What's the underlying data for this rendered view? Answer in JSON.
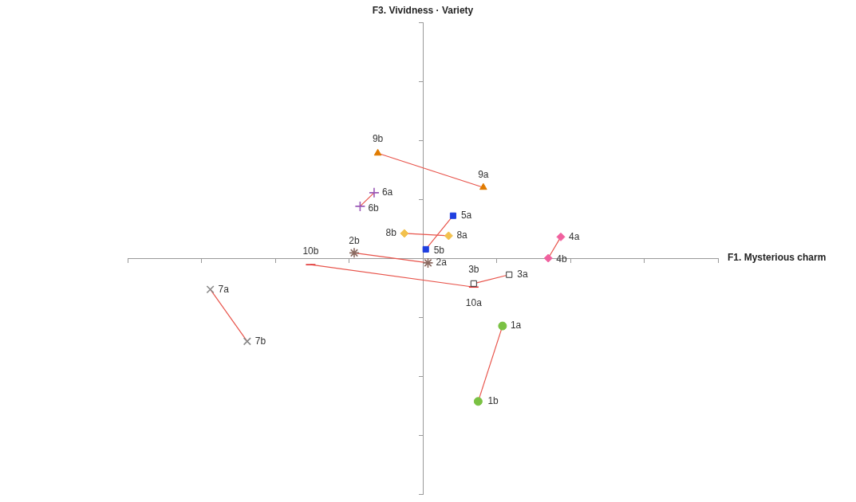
{
  "chart_data": {
    "type": "scatter",
    "x_label": "F1. Mysterious charm",
    "y_label": "F3. Vividness · Variety",
    "xlim": [
      -4,
      4
    ],
    "xticks": [
      -4,
      -3,
      -2,
      -1,
      0,
      1,
      2,
      3,
      4
    ],
    "ylim": [
      -4,
      4
    ],
    "yticks": [
      -4,
      -3,
      -2,
      -1,
      0,
      1,
      2,
      3,
      4
    ],
    "tick_labels": false,
    "grid": false,
    "series": [
      {
        "color": "#7ac143",
        "marker": "circle",
        "line_style": "solid",
        "labels": [
          "1a",
          "1b"
        ],
        "x": [
          1.08,
          0.75
        ],
        "values": [
          -1.15,
          -2.43
        ]
      },
      {
        "color": "#8b6b61",
        "marker": "star",
        "line_style": "solid",
        "labels": [
          "2a",
          "2b"
        ],
        "x": [
          0.07,
          -0.93
        ],
        "values": [
          -0.08,
          0.09
        ]
      },
      {
        "color": "#333333",
        "marker": "open_square",
        "line_style": "solid",
        "labels": [
          "3a",
          "3b"
        ],
        "x": [
          1.17,
          0.69
        ],
        "values": [
          -0.28,
          -0.43
        ]
      },
      {
        "color": "#f0609e",
        "marker": "diamond",
        "line_style": "solid",
        "labels": [
          "4a",
          "4b"
        ],
        "x": [
          1.87,
          1.7
        ],
        "values": [
          0.36,
          0.0
        ]
      },
      {
        "color": "#1f3fe0",
        "marker": "square",
        "line_style": "solid",
        "labels": [
          "5a",
          "5b"
        ],
        "x": [
          0.41,
          0.04
        ],
        "values": [
          0.72,
          0.15
        ]
      },
      {
        "color": "#9b59b6",
        "marker": "plus",
        "line_style": "solid",
        "labels": [
          "6a",
          "6b"
        ],
        "x": [
          -0.66,
          -0.85
        ],
        "values": [
          1.11,
          0.88
        ]
      },
      {
        "color": "#888888",
        "marker": "x",
        "line_style": "solid",
        "labels": [
          "7a",
          "7b"
        ],
        "x": [
          -2.88,
          -2.38
        ],
        "values": [
          -0.53,
          -1.41
        ]
      },
      {
        "color": "#f2c14e",
        "marker": "diamond",
        "line_style": "solid",
        "labels": [
          "8a",
          "8b"
        ],
        "x": [
          0.35,
          -0.25
        ],
        "values": [
          0.38,
          0.42
        ]
      },
      {
        "color": "#e07b00",
        "marker": "triangle",
        "line_style": "solid",
        "labels": [
          "9a",
          "9b"
        ],
        "x": [
          0.82,
          -0.61
        ],
        "values": [
          1.2,
          1.78
        ]
      },
      {
        "color": "#e03030",
        "marker": "dash",
        "line_style": "solid",
        "labels": [
          "10a",
          "10b"
        ],
        "x": [
          0.69,
          -1.52
        ],
        "values": [
          -0.49,
          -0.11
        ]
      }
    ]
  }
}
